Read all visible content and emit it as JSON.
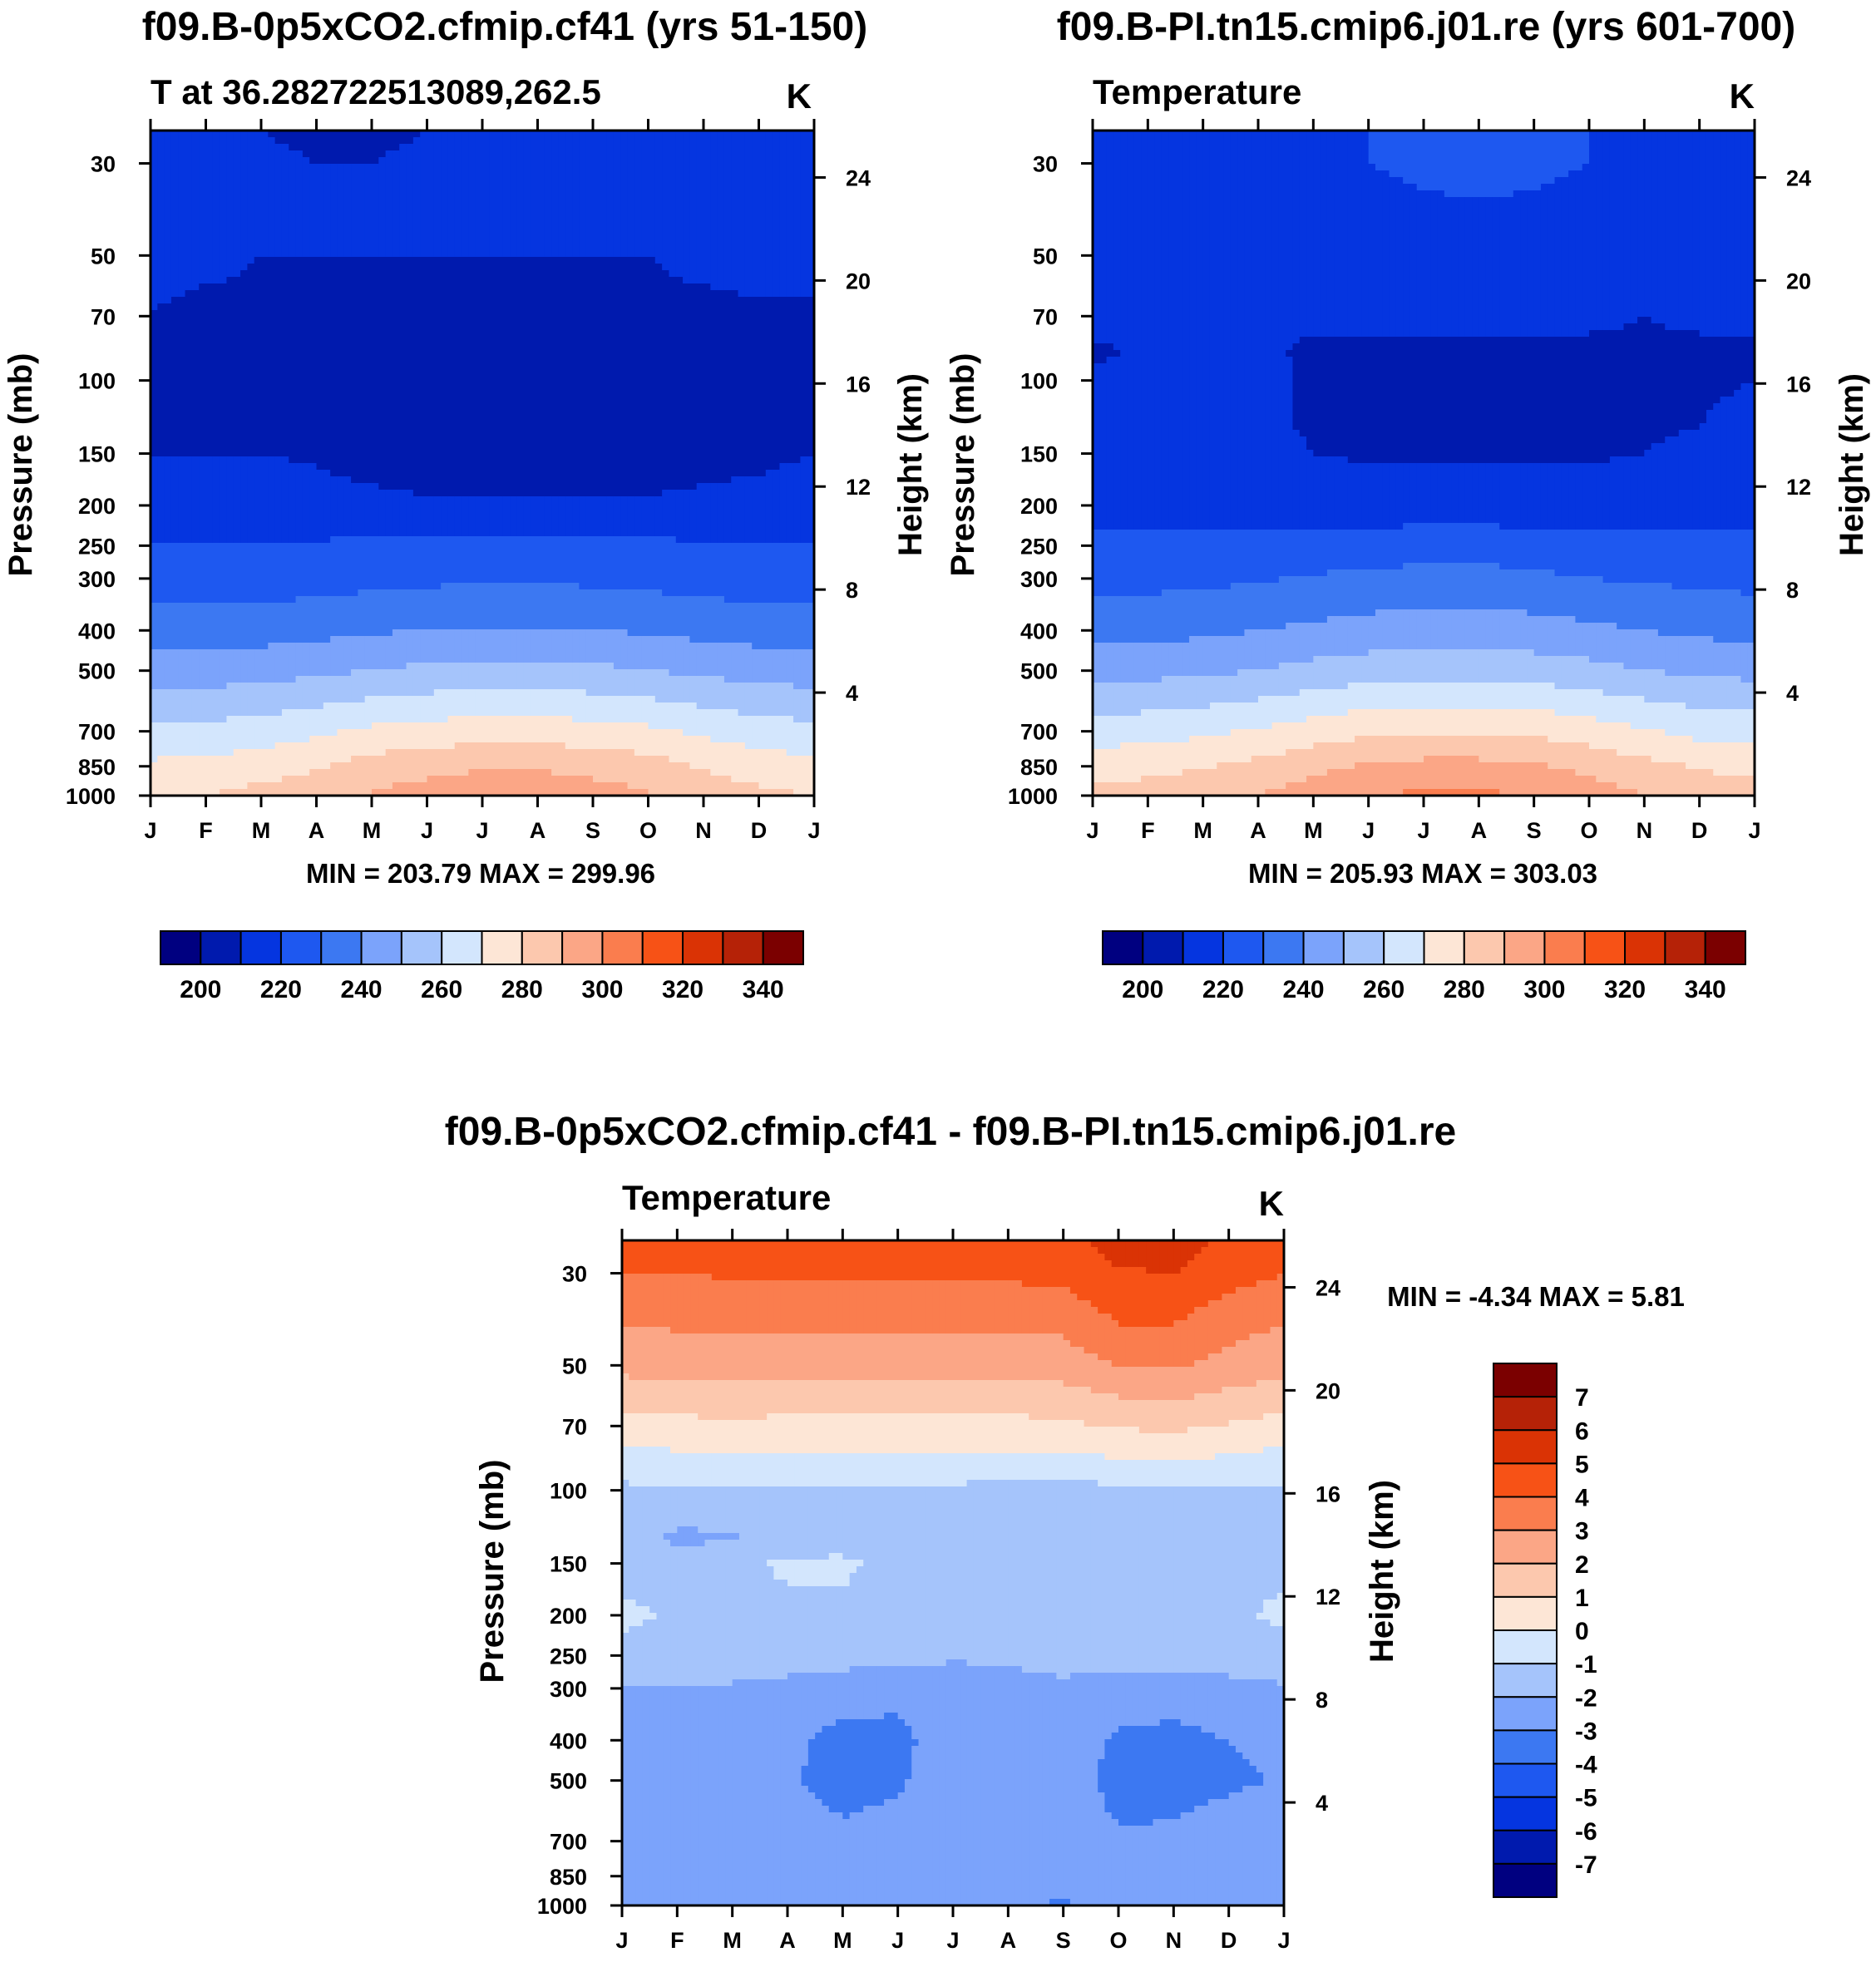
{
  "colors": {
    "abs": [
      "#000080",
      "#001AAE",
      "#0535E0",
      "#1E58F0",
      "#3C78F2",
      "#7BA3FB",
      "#A5C4FB",
      "#D3E6FD",
      "#FDE6D6",
      "#FCC8AE",
      "#FBA686",
      "#FA7D4E",
      "#F75216",
      "#DA3305",
      "#B52207",
      "#7B0000"
    ],
    "diff": [
      "#000080",
      "#001AAE",
      "#0535E0",
      "#1E58F0",
      "#3C78F2",
      "#7BA3FB",
      "#A5C4FB",
      "#D3E6FD",
      "#FDE6D6",
      "#FCC8AE",
      "#FBA686",
      "#FA7D4E",
      "#F75216",
      "#DA3305",
      "#B52207",
      "#7B0000"
    ]
  },
  "chart_data": [
    {
      "id": "panel-a",
      "type": "heatmap",
      "title": "f09.B-0p5xCO2.cfmip.cf41 (yrs 51-150)",
      "subtitle": "T at 36.282722513089,262.5",
      "units": "K",
      "xlabel": "",
      "ylabel": "Pressure (mb)",
      "ylabel_right": "Height (km)",
      "x_ticks": [
        "J",
        "F",
        "M",
        "A",
        "M",
        "J",
        "J",
        "A",
        "S",
        "O",
        "N",
        "D",
        "J"
      ],
      "pressure_ticks": [
        30,
        50,
        70,
        100,
        150,
        200,
        250,
        300,
        400,
        500,
        700,
        850,
        1000
      ],
      "height_ticks": [
        24,
        20,
        16,
        12,
        8,
        4
      ],
      "ylim": [
        1000,
        25
      ],
      "minmax": "MIN = 203.79 MAX = 299.96",
      "colorbar_labels": [
        "200",
        "220",
        "240",
        "260",
        "280",
        "300",
        "320",
        "340"
      ],
      "levels": [
        190,
        200,
        210,
        220,
        230,
        240,
        250,
        260,
        270,
        280,
        290,
        300,
        310,
        320,
        330,
        340,
        350
      ],
      "x": [
        0,
        1,
        2,
        3,
        4,
        5,
        6,
        7,
        8,
        9,
        10,
        11,
        12
      ],
      "pressure": [
        25,
        30,
        40,
        50,
        70,
        85,
        100,
        130,
        150,
        200,
        250,
        300,
        400,
        500,
        700,
        850,
        950,
        1000
      ],
      "values": [
        [
          212,
          211,
          210,
          209,
          209,
          210,
          211,
          212,
          212,
          211,
          211,
          211,
          212
        ],
        [
          213,
          212,
          211,
          210,
          210,
          211,
          212,
          213,
          213,
          212,
          212,
          212,
          213
        ],
        [
          212,
          211,
          211,
          210,
          210,
          210,
          211,
          211,
          211,
          211,
          212,
          213,
          213
        ],
        [
          211,
          211,
          210,
          210,
          210,
          210,
          210,
          210,
          210,
          210,
          211,
          212,
          212
        ],
        [
          210,
          209,
          209,
          209,
          209,
          209,
          209,
          209,
          209,
          209,
          209,
          209,
          209
        ],
        [
          207,
          208,
          209,
          208,
          206,
          206,
          206,
          206,
          206,
          206,
          206,
          206,
          206
        ],
        [
          207,
          208,
          209,
          208,
          206,
          205,
          205,
          205,
          205,
          205,
          205,
          205,
          206
        ],
        [
          209,
          209,
          209,
          208,
          206,
          205,
          205,
          205,
          205,
          205,
          205,
          206,
          208
        ],
        [
          210,
          210,
          210,
          209,
          207,
          206,
          206,
          206,
          206,
          206,
          207,
          208,
          210
        ],
        [
          214,
          214,
          214,
          213,
          212,
          211,
          211,
          211,
          211,
          211,
          212,
          213,
          214
        ],
        [
          221,
          221,
          221,
          221,
          222,
          223,
          223,
          223,
          223,
          222,
          221,
          221,
          221
        ],
        [
          225,
          225,
          225,
          226,
          227,
          228,
          229,
          229,
          228,
          227,
          226,
          225,
          225
        ],
        [
          235,
          235,
          236,
          237,
          239,
          240,
          241,
          241,
          240,
          239,
          237,
          236,
          235
        ],
        [
          245,
          245,
          246,
          248,
          250,
          252,
          253,
          253,
          252,
          250,
          248,
          246,
          245
        ],
        [
          262,
          263,
          265,
          268,
          272,
          274,
          275,
          275,
          274,
          272,
          268,
          265,
          263
        ],
        [
          272,
          273,
          275,
          279,
          284,
          287,
          289,
          289,
          287,
          284,
          279,
          275,
          273
        ],
        [
          277,
          278,
          281,
          284,
          289,
          292,
          294,
          294,
          292,
          289,
          284,
          280,
          278
        ],
        [
          279,
          280,
          283,
          286,
          291,
          294,
          296,
          296,
          294,
          291,
          286,
          282,
          280
        ]
      ]
    },
    {
      "id": "panel-b",
      "type": "heatmap",
      "title": "f09.B-PI.tn15.cmip6.j01.re (yrs 601-700)",
      "subtitle": "Temperature",
      "units": "K",
      "xlabel": "",
      "ylabel": "Pressure (mb)",
      "ylabel_right": "Height (km)",
      "x_ticks": [
        "J",
        "F",
        "M",
        "A",
        "M",
        "J",
        "J",
        "A",
        "S",
        "O",
        "N",
        "D",
        "J"
      ],
      "pressure_ticks": [
        30,
        50,
        70,
        100,
        150,
        200,
        250,
        300,
        400,
        500,
        700,
        850,
        1000
      ],
      "height_ticks": [
        24,
        20,
        16,
        12,
        8,
        4
      ],
      "ylim": [
        1000,
        25
      ],
      "minmax": "MIN = 205.93 MAX = 303.03",
      "colorbar_labels": [
        "200",
        "220",
        "240",
        "260",
        "280",
        "300",
        "320",
        "340"
      ],
      "levels": [
        190,
        200,
        210,
        220,
        230,
        240,
        250,
        260,
        270,
        280,
        290,
        300,
        310,
        320,
        330,
        340,
        350
      ],
      "x": [
        0,
        1,
        2,
        3,
        4,
        5,
        6,
        7,
        8,
        9,
        10,
        11,
        12
      ],
      "pressure": [
        25,
        30,
        40,
        50,
        70,
        85,
        100,
        130,
        150,
        200,
        250,
        300,
        400,
        500,
        700,
        850,
        950,
        1000
      ],
      "values": [
        [
          218,
          218,
          218,
          219,
          219,
          220,
          221,
          221,
          221,
          220,
          219,
          218,
          218
        ],
        [
          218,
          218,
          218,
          218,
          219,
          220,
          221,
          222,
          221,
          220,
          219,
          218,
          218
        ],
        [
          217,
          217,
          217,
          217,
          217,
          218,
          219,
          219,
          219,
          218,
          217,
          217,
          217
        ],
        [
          216,
          216,
          216,
          216,
          216,
          216,
          216,
          216,
          216,
          216,
          216,
          216,
          216
        ],
        [
          212,
          212,
          212,
          212,
          211,
          211,
          211,
          211,
          211,
          211,
          210,
          211,
          212
        ],
        [
          209,
          211,
          212,
          211,
          209,
          209,
          209,
          209,
          209,
          209,
          209,
          209,
          209
        ],
        [
          211,
          212,
          212,
          212,
          209,
          208,
          208,
          208,
          208,
          208,
          208,
          209,
          210
        ],
        [
          212,
          213,
          213,
          212,
          209,
          208,
          208,
          208,
          208,
          208,
          209,
          210,
          212
        ],
        [
          213,
          214,
          214,
          213,
          210,
          209,
          209,
          209,
          209,
          209,
          210,
          212,
          213
        ],
        [
          216,
          216,
          216,
          216,
          215,
          214,
          214,
          214,
          214,
          214,
          215,
          216,
          216
        ],
        [
          222,
          222,
          222,
          223,
          224,
          225,
          226,
          226,
          225,
          224,
          223,
          222,
          222
        ],
        [
          227,
          227,
          228,
          229,
          231,
          232,
          233,
          233,
          232,
          230,
          229,
          228,
          227
        ],
        [
          237,
          237,
          238,
          240,
          242,
          244,
          245,
          245,
          244,
          242,
          240,
          238,
          237
        ],
        [
          247,
          247,
          248,
          250,
          253,
          255,
          256,
          256,
          255,
          253,
          250,
          248,
          247
        ],
        [
          265,
          266,
          268,
          271,
          275,
          278,
          279,
          279,
          278,
          275,
          271,
          267,
          266
        ],
        [
          276,
          277,
          279,
          283,
          287,
          291,
          293,
          293,
          291,
          287,
          283,
          279,
          277
        ],
        [
          281,
          282,
          285,
          288,
          293,
          297,
          299,
          299,
          297,
          293,
          288,
          284,
          282
        ],
        [
          283,
          284,
          287,
          290,
          295,
          299,
          302,
          302,
          299,
          295,
          290,
          286,
          284
        ]
      ]
    },
    {
      "id": "panel-c",
      "type": "heatmap",
      "title": "f09.B-0p5xCO2.cfmip.cf41 - f09.B-PI.tn15.cmip6.j01.re",
      "subtitle": "Temperature",
      "units": "K",
      "xlabel": "",
      "ylabel": "Pressure (mb)",
      "ylabel_right": "Height (km)",
      "x_ticks": [
        "J",
        "F",
        "M",
        "A",
        "M",
        "J",
        "J",
        "A",
        "S",
        "O",
        "N",
        "D",
        "J"
      ],
      "pressure_ticks": [
        30,
        50,
        70,
        100,
        150,
        200,
        250,
        300,
        400,
        500,
        700,
        850,
        1000
      ],
      "height_ticks": [
        24,
        20,
        16,
        12,
        8,
        4
      ],
      "ylim": [
        1000,
        25
      ],
      "minmax": "MIN =  -4.34 MAX =   5.81",
      "colorbar_labels": [
        "7",
        "6",
        "5",
        "4",
        "3",
        "2",
        "1",
        "0",
        "-1",
        "-2",
        "-3",
        "-4",
        "-5",
        "-6",
        "-7"
      ],
      "levels": [
        -8,
        -7,
        -6,
        -5,
        -4,
        -3,
        -2,
        -1,
        0,
        1,
        2,
        3,
        4,
        5,
        6,
        7,
        8
      ],
      "x": [
        0,
        1,
        2,
        3,
        4,
        5,
        6,
        7,
        8,
        9,
        10,
        11,
        12
      ],
      "pressure": [
        25,
        30,
        40,
        50,
        70,
        85,
        100,
        130,
        150,
        200,
        250,
        300,
        400,
        500,
        700,
        850,
        950,
        1000
      ],
      "values": [
        [
          4.4,
          4.4,
          4.5,
          4.5,
          4.5,
          4.5,
          4.5,
          4.6,
          4.7,
          5.4,
          5.5,
          4.8,
          4.5
        ],
        [
          4.0,
          4.0,
          4.1,
          4.1,
          4.1,
          4.1,
          4.1,
          4.2,
          4.3,
          4.9,
          5.0,
          4.4,
          4.0
        ],
        [
          3.0,
          3.1,
          3.2,
          3.1,
          3.1,
          3.1,
          3.1,
          3.1,
          3.2,
          4.0,
          4.0,
          3.3,
          3.0
        ],
        [
          2.3,
          2.4,
          2.5,
          2.4,
          2.4,
          2.4,
          2.4,
          2.4,
          2.5,
          3.0,
          3.1,
          2.7,
          2.3
        ],
        [
          0.6,
          0.7,
          0.8,
          0.7,
          0.7,
          0.7,
          0.7,
          0.7,
          0.8,
          1.1,
          1.2,
          0.9,
          0.6
        ],
        [
          -0.4,
          -0.3,
          -0.2,
          -0.3,
          -0.3,
          -0.3,
          -0.3,
          -0.3,
          -0.3,
          -0.1,
          0.0,
          -0.2,
          -0.4
        ],
        [
          -1.2,
          -1.2,
          -1.2,
          -1.2,
          -1.2,
          -1.2,
          -1.2,
          -1.3,
          -1.4,
          -1.2,
          -1.1,
          -1.1,
          -1.2
        ],
        [
          -1.5,
          -2.2,
          -2.1,
          -1.6,
          -1.5,
          -1.5,
          -1.6,
          -1.9,
          -1.8,
          -1.6,
          -1.5,
          -1.5,
          -1.5
        ],
        [
          -1.4,
          -1.6,
          -1.3,
          -0.8,
          -0.8,
          -1.4,
          -1.8,
          -1.7,
          -1.6,
          -1.5,
          -1.4,
          -1.3,
          -1.2
        ],
        [
          -0.8,
          -1.1,
          -1.4,
          -1.3,
          -1.2,
          -1.6,
          -1.8,
          -1.7,
          -1.4,
          -1.2,
          -1.3,
          -1.2,
          -0.8
        ],
        [
          -1.3,
          -1.4,
          -1.5,
          -1.5,
          -1.5,
          -1.7,
          -1.9,
          -1.9,
          -1.8,
          -1.6,
          -1.6,
          -1.5,
          -1.4
        ],
        [
          -2.1,
          -2.1,
          -2.1,
          -2.3,
          -2.6,
          -2.8,
          -2.4,
          -2.2,
          -2.1,
          -2.4,
          -2.5,
          -2.3,
          -2.1
        ],
        [
          -2.6,
          -2.4,
          -2.2,
          -2.8,
          -3.3,
          -3.2,
          -2.6,
          -2.4,
          -2.4,
          -3.2,
          -3.3,
          -3.0,
          -2.7
        ],
        [
          -2.8,
          -2.4,
          -2.2,
          -2.9,
          -3.3,
          -3.1,
          -2.6,
          -2.4,
          -2.5,
          -3.3,
          -3.4,
          -3.2,
          -2.9
        ],
        [
          -2.5,
          -2.3,
          -2.2,
          -2.6,
          -2.8,
          -2.7,
          -2.3,
          -2.4,
          -2.6,
          -2.9,
          -2.8,
          -2.4,
          -2.2
        ],
        [
          -2.3,
          -2.2,
          -2.0,
          -2.2,
          -2.2,
          -2.1,
          -2.1,
          -2.3,
          -2.5,
          -2.6,
          -2.4,
          -2.1,
          -2.1
        ],
        [
          -2.4,
          -2.2,
          -2.0,
          -2.1,
          -2.2,
          -2.3,
          -2.5,
          -2.6,
          -2.7,
          -2.6,
          -2.3,
          -2.2,
          -2.3
        ],
        [
          -2.8,
          -2.5,
          -2.3,
          -2.4,
          -2.5,
          -2.7,
          -2.9,
          -3.1,
          -3.2,
          -3.0,
          -2.7,
          -2.6,
          -2.8
        ]
      ]
    }
  ]
}
